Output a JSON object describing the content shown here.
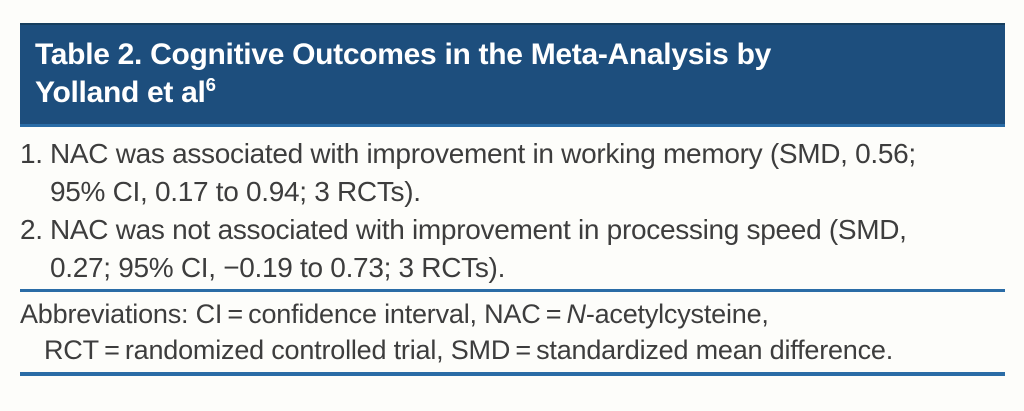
{
  "table": {
    "title": {
      "line1": "Table 2. Cognitive Outcomes in the Meta-Analysis by",
      "line2": "Yolland et al",
      "reference": "6"
    },
    "findings": [
      {
        "number": "1.",
        "line1": "NAC was associated with improvement in working memory (SMD, 0.56;",
        "line2": "95% CI, 0.17 to 0.94; 3 RCTs)."
      },
      {
        "number": "2.",
        "line1": "NAC was not associated with improvement in processing speed (SMD,",
        "line2": "0.27; 95% CI, −0.19 to 0.73; 3 RCTs)."
      }
    ],
    "footnote": {
      "line1_prefix": "Abbreviations: CI = confidence interval, NAC = ",
      "line1_italic": "N",
      "line1_suffix": "-acetylcysteine,",
      "line2": "RCT = randomized controlled trial, SMD = standardized mean difference."
    },
    "colors": {
      "header_background": "#1d4e7d",
      "header_top_edge": "#163e5e",
      "rule_blue": "#2a6ca6",
      "title_text": "#ffffff",
      "body_text": "#3d3d3d",
      "page_background": "#fdfdfa"
    }
  }
}
